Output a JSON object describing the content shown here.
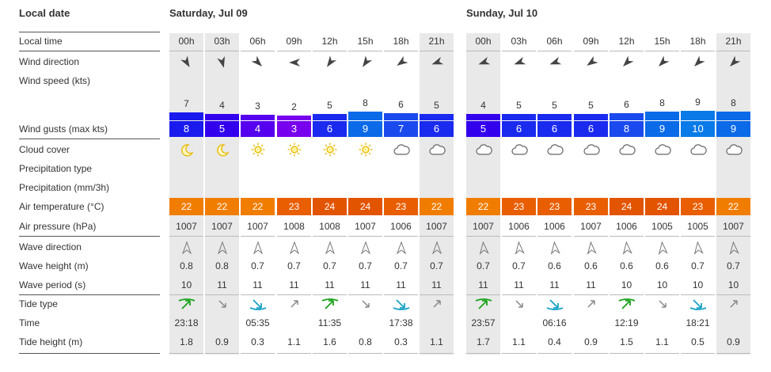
{
  "labels": {
    "local_date": "Local date",
    "local_time": "Local time",
    "wind_direction": "Wind direction",
    "wind_speed": "Wind speed  (kts)",
    "wind_gusts": "Wind gusts  (max kts)",
    "cloud_cover": "Cloud cover",
    "precipitation_type": "Precipitation type",
    "precipitation": "Precipitation  (mm/3h)",
    "air_temperature": "Air temperature  (°C)",
    "air_pressure": "Air pressure  (hPa)",
    "wave_direction": "Wave direction",
    "wave_height": "Wave height  (m)",
    "wave_period": "Wave period  (s)",
    "tide_type": "Tide type",
    "time": "Time",
    "tide_height": "Tide height  (m)"
  },
  "colors": {
    "night_bg": "#e9e9e9",
    "temp_22": "#f07d00",
    "temp_23": "#e85e00",
    "temp_24": "#e35400",
    "tide_high": "#1ca31c",
    "tide_low": "#1aa3c8",
    "tide_mid": "#888888"
  },
  "days": [
    {
      "title": "Saturday, Jul 09",
      "hours": [
        {
          "time": "00h",
          "night": true,
          "wind_dir_icon": "arrow-icon",
          "wind_dir_deg": 150,
          "wind_speed": "7",
          "wind_level": 7,
          "gust": "8",
          "gust_color": "#1a1aee",
          "cloud_icon": "moon-icon",
          "temp": "22",
          "pressure": "1007",
          "wave_dir_deg": 340,
          "wave_height": "0.8",
          "wave_period": "10",
          "tide_icon": "tide-high-icon",
          "tide_time": "23:18",
          "tide_height": "1.8"
        },
        {
          "time": "03h",
          "night": true,
          "wind_dir_icon": "arrow-icon",
          "wind_dir_deg": 165,
          "wind_speed": "4",
          "wind_level": 4,
          "gust": "5",
          "gust_color": "#3300ee",
          "cloud_icon": "moon-icon",
          "temp": "22",
          "pressure": "1007",
          "wave_dir_deg": 340,
          "wave_height": "0.8",
          "wave_period": "11",
          "tide_icon": "tide-falling-icon",
          "tide_time": "",
          "tide_height": "0.9"
        },
        {
          "time": "06h",
          "night": false,
          "wind_dir_icon": "arrow-icon",
          "wind_dir_deg": 135,
          "wind_speed": "3",
          "wind_level": 3,
          "gust": "4",
          "gust_color": "#5500ee",
          "cloud_icon": "sun-icon",
          "temp": "22",
          "pressure": "1007",
          "wave_dir_deg": 340,
          "wave_height": "0.7",
          "wave_period": "11",
          "tide_icon": "tide-low-icon",
          "tide_time": "05:35",
          "tide_height": "0.3"
        },
        {
          "time": "09h",
          "night": false,
          "wind_dir_icon": "arrow-icon",
          "wind_dir_deg": 270,
          "wind_speed": "2",
          "wind_level": 2,
          "gust": "3",
          "gust_color": "#7700ee",
          "cloud_icon": "sun-icon",
          "temp": "23",
          "pressure": "1008",
          "wave_dir_deg": 340,
          "wave_height": "0.7",
          "wave_period": "11",
          "tide_icon": "tide-rising-icon",
          "tide_time": "",
          "tide_height": "1.1"
        },
        {
          "time": "12h",
          "night": false,
          "wind_dir_icon": "arrow-icon",
          "wind_dir_deg": 215,
          "wind_speed": "5",
          "wind_level": 5,
          "gust": "6",
          "gust_color": "#1a2aee",
          "cloud_icon": "sun-icon",
          "temp": "24",
          "pressure": "1008",
          "wave_dir_deg": 340,
          "wave_height": "0.7",
          "wave_period": "11",
          "tide_icon": "tide-high-icon",
          "tide_time": "11:35",
          "tide_height": "1.6"
        },
        {
          "time": "15h",
          "night": false,
          "wind_dir_icon": "arrow-icon",
          "wind_dir_deg": 215,
          "wind_speed": "8",
          "wind_level": 8,
          "gust": "9",
          "gust_color": "#0a6ae8",
          "cloud_icon": "sun-icon",
          "temp": "24",
          "pressure": "1007",
          "wave_dir_deg": 340,
          "wave_height": "0.7",
          "wave_period": "11",
          "tide_icon": "tide-falling-icon",
          "tide_time": "",
          "tide_height": "0.8"
        },
        {
          "time": "18h",
          "night": false,
          "wind_dir_icon": "arrow-icon",
          "wind_dir_deg": 235,
          "wind_speed": "6",
          "wind_level": 6,
          "gust": "7",
          "gust_color": "#1a4aee",
          "cloud_icon": "cloud-icon",
          "temp": "23",
          "pressure": "1006",
          "wave_dir_deg": 340,
          "wave_height": "0.7",
          "wave_period": "11",
          "tide_icon": "tide-low-icon",
          "tide_time": "17:38",
          "tide_height": "0.3"
        },
        {
          "time": "21h",
          "night": true,
          "wind_dir_icon": "arrow-icon",
          "wind_dir_deg": 250,
          "wind_speed": "5",
          "wind_level": 5,
          "gust": "6",
          "gust_color": "#1a2aee",
          "cloud_icon": "cloud-icon",
          "temp": "22",
          "pressure": "1007",
          "wave_dir_deg": 340,
          "wave_height": "0.7",
          "wave_period": "11",
          "tide_icon": "tide-rising-icon",
          "tide_time": "",
          "tide_height": "1.1"
        }
      ]
    },
    {
      "title": "Sunday, Jul 10",
      "hours": [
        {
          "time": "00h",
          "night": true,
          "wind_dir_icon": "arrow-icon",
          "wind_dir_deg": 250,
          "wind_speed": "4",
          "wind_level": 4,
          "gust": "5",
          "gust_color": "#3300ee",
          "cloud_icon": "cloud-icon",
          "temp": "22",
          "pressure": "1007",
          "wave_dir_deg": 335,
          "wave_height": "0.7",
          "wave_period": "11",
          "tide_icon": "tide-high-icon",
          "tide_time": "23:57",
          "tide_height": "1.7"
        },
        {
          "time": "03h",
          "night": false,
          "wind_dir_icon": "arrow-icon",
          "wind_dir_deg": 250,
          "wind_speed": "5",
          "wind_level": 5,
          "gust": "6",
          "gust_color": "#1a2aee",
          "cloud_icon": "cloud-icon",
          "temp": "23",
          "pressure": "1006",
          "wave_dir_deg": 335,
          "wave_height": "0.7",
          "wave_period": "11",
          "tide_icon": "tide-falling-icon",
          "tide_time": "",
          "tide_height": "1.1"
        },
        {
          "time": "06h",
          "night": false,
          "wind_dir_icon": "arrow-icon",
          "wind_dir_deg": 250,
          "wind_speed": "5",
          "wind_level": 5,
          "gust": "6",
          "gust_color": "#1a2aee",
          "cloud_icon": "cloud-icon",
          "temp": "23",
          "pressure": "1006",
          "wave_dir_deg": 335,
          "wave_height": "0.6",
          "wave_period": "11",
          "tide_icon": "tide-low-icon",
          "tide_time": "06:16",
          "tide_height": "0.4"
        },
        {
          "time": "09h",
          "night": false,
          "wind_dir_icon": "arrow-icon",
          "wind_dir_deg": 235,
          "wind_speed": "5",
          "wind_level": 5,
          "gust": "6",
          "gust_color": "#1a2aee",
          "cloud_icon": "cloud-icon",
          "temp": "23",
          "pressure": "1007",
          "wave_dir_deg": 335,
          "wave_height": "0.6",
          "wave_period": "11",
          "tide_icon": "tide-rising-icon",
          "tide_time": "",
          "tide_height": "0.9"
        },
        {
          "time": "12h",
          "night": false,
          "wind_dir_icon": "arrow-icon",
          "wind_dir_deg": 225,
          "wind_speed": "6",
          "wind_level": 6,
          "gust": "8",
          "gust_color": "#1a4aee",
          "cloud_icon": "cloud-icon",
          "temp": "24",
          "pressure": "1006",
          "wave_dir_deg": 335,
          "wave_height": "0.6",
          "wave_period": "10",
          "tide_icon": "tide-high-icon",
          "tide_time": "12:19",
          "tide_height": "1.5"
        },
        {
          "time": "15h",
          "night": false,
          "wind_dir_icon": "arrow-icon",
          "wind_dir_deg": 225,
          "wind_speed": "8",
          "wind_level": 8,
          "gust": "9",
          "gust_color": "#0a6ae8",
          "cloud_icon": "cloud-icon",
          "temp": "24",
          "pressure": "1005",
          "wave_dir_deg": 335,
          "wave_height": "0.6",
          "wave_period": "10",
          "tide_icon": "tide-falling-icon",
          "tide_time": "",
          "tide_height": "1.1"
        },
        {
          "time": "18h",
          "night": false,
          "wind_dir_icon": "arrow-icon",
          "wind_dir_deg": 225,
          "wind_speed": "9",
          "wind_level": 9,
          "gust": "10",
          "gust_color": "#0a7ae8",
          "cloud_icon": "cloud-icon",
          "temp": "23",
          "pressure": "1005",
          "wave_dir_deg": 335,
          "wave_height": "0.7",
          "wave_period": "10",
          "tide_icon": "tide-low-icon",
          "tide_time": "18:21",
          "tide_height": "0.5"
        },
        {
          "time": "21h",
          "night": true,
          "wind_dir_icon": "arrow-icon",
          "wind_dir_deg": 225,
          "wind_speed": "8",
          "wind_level": 8,
          "gust": "9",
          "gust_color": "#0a6ae8",
          "cloud_icon": "cloud-icon",
          "temp": "22",
          "pressure": "1007",
          "wave_dir_deg": 335,
          "wave_height": "0.7",
          "wave_period": "10",
          "tide_icon": "tide-rising-icon",
          "tide_time": "",
          "tide_height": "0.9"
        }
      ]
    }
  ]
}
